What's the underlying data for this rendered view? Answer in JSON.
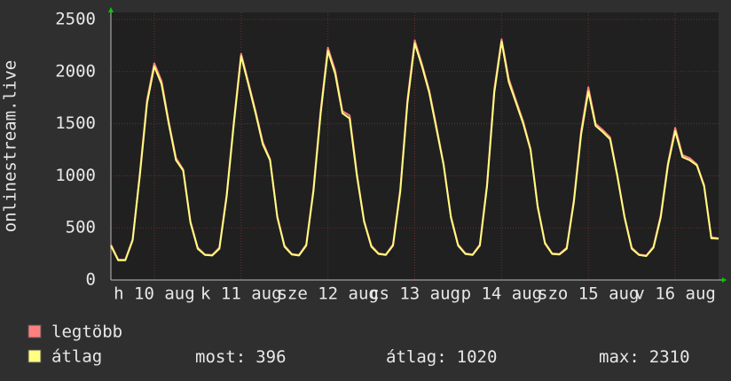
{
  "chart_data": {
    "type": "line",
    "ylabel": "onlinestream.live",
    "x": [
      0,
      2,
      4,
      6,
      8,
      10,
      12,
      14,
      16,
      18,
      20,
      22,
      24,
      26,
      28,
      30,
      32,
      34,
      36,
      38,
      40,
      42,
      44,
      46,
      48,
      50,
      52,
      54,
      56,
      58,
      60,
      62,
      64,
      66,
      68,
      70,
      72,
      74,
      76,
      78,
      80,
      82,
      84,
      86,
      88,
      90,
      92,
      94,
      96,
      98,
      100,
      102,
      104,
      106,
      108,
      110,
      112,
      114,
      116,
      118,
      120,
      122,
      124,
      126,
      128,
      130,
      132,
      134,
      136,
      138,
      140,
      142,
      144,
      146,
      148,
      150,
      152,
      154,
      156,
      158,
      160,
      162,
      164,
      166,
      168
    ],
    "xlim": [
      0,
      168
    ],
    "xticks": [
      {
        "value": 12,
        "label": "h 10 aug"
      },
      {
        "value": 36,
        "label": "k 11 aug"
      },
      {
        "value": 60,
        "label": "sze 12 aug"
      },
      {
        "value": 84,
        "label": "cs 13 aug"
      },
      {
        "value": 108,
        "label": "p 14 aug"
      },
      {
        "value": 132,
        "label": "szo 15 aug"
      },
      {
        "value": 156,
        "label": "v 16 aug"
      }
    ],
    "ylim": [
      0,
      2500
    ],
    "yticks": [
      0,
      500,
      1000,
      1500,
      2000,
      2500
    ],
    "grid": true,
    "series": [
      {
        "name": "legtöbb",
        "color": "#ff8080",
        "values": [
          340,
          195,
          195,
          390,
          1020,
          1730,
          2080,
          1910,
          1520,
          1170,
          1060,
          560,
          310,
          245,
          240,
          310,
          820,
          1520,
          2170,
          1900,
          1620,
          1320,
          1160,
          610,
          330,
          250,
          240,
          340,
          870,
          1630,
          2230,
          2010,
          1620,
          1580,
          1020,
          570,
          330,
          255,
          245,
          340,
          870,
          1730,
          2300,
          2070,
          1820,
          1470,
          1110,
          610,
          340,
          255,
          245,
          340,
          920,
          1830,
          2310,
          1930,
          1720,
          1520,
          1260,
          710,
          360,
          255,
          250,
          310,
          770,
          1430,
          1850,
          1500,
          1440,
          1370,
          1010,
          610,
          310,
          245,
          235,
          320,
          620,
          1120,
          1460,
          1200,
          1170,
          1110,
          910,
          410,
          400
        ]
      },
      {
        "name": "átlag",
        "color": "#ffff80",
        "values": [
          330,
          190,
          190,
          380,
          1000,
          1700,
          2050,
          1880,
          1500,
          1150,
          1050,
          550,
          300,
          240,
          235,
          300,
          800,
          1500,
          2150,
          1880,
          1600,
          1300,
          1150,
          600,
          320,
          245,
          235,
          330,
          850,
          1600,
          2200,
          1980,
          1600,
          1550,
          1000,
          560,
          320,
          250,
          240,
          330,
          850,
          1700,
          2270,
          2050,
          1800,
          1450,
          1100,
          600,
          330,
          250,
          240,
          330,
          900,
          1800,
          2290,
          1900,
          1700,
          1500,
          1250,
          700,
          350,
          250,
          245,
          300,
          750,
          1400,
          1810,
          1480,
          1420,
          1350,
          1000,
          600,
          300,
          240,
          230,
          310,
          600,
          1100,
          1430,
          1180,
          1150,
          1100,
          900,
          400,
          396
        ]
      }
    ],
    "stats": [
      {
        "label": "most:",
        "value": 396
      },
      {
        "label": "átlag:",
        "value": 1020
      },
      {
        "label": "max:",
        "value": 2310
      }
    ]
  }
}
